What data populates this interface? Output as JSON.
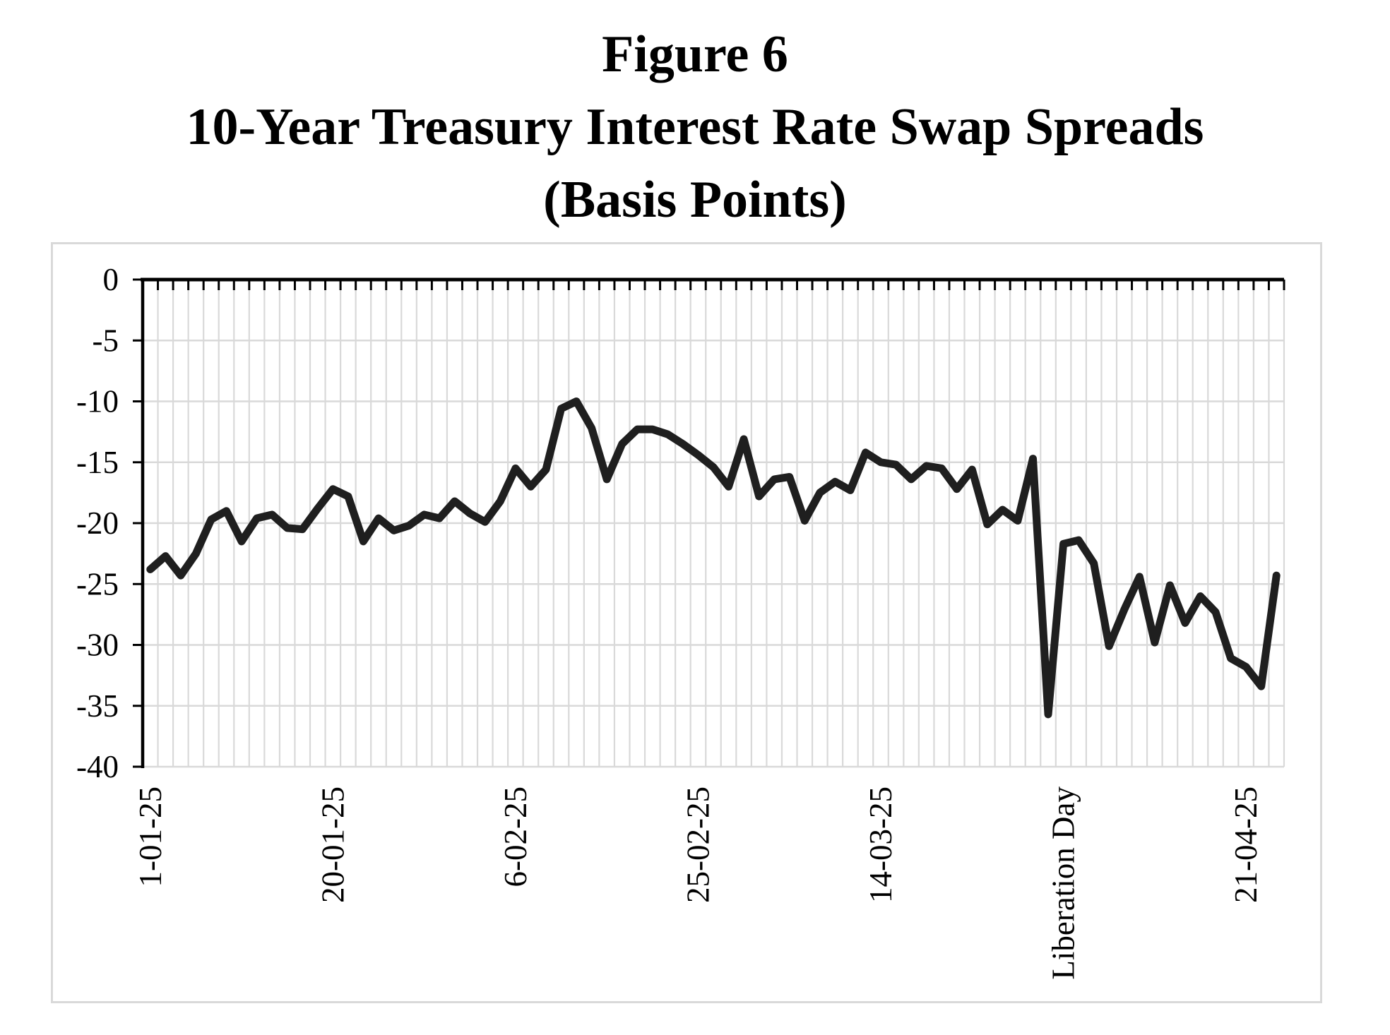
{
  "title": {
    "line1": "Figure 6",
    "line2": "10-Year Treasury Interest Rate Swap Spreads",
    "line3": "(Basis Points)"
  },
  "colors": {
    "series_line": "#1f1f1f",
    "gridline": "#d9d9d9",
    "plot_border": "#d9d9d9",
    "axis": "#000000",
    "text": "#000000",
    "background": "#ffffff"
  },
  "chart_data": {
    "type": "line",
    "title": "Figure 6",
    "subtitle": "10-Year Treasury Interest Rate Swap Spreads (Basis Points)",
    "xlabel": "",
    "ylabel": "",
    "ylim": [
      -40,
      0
    ],
    "y_ticks": [
      0,
      -5,
      -10,
      -15,
      -20,
      -25,
      -30,
      -35,
      -40
    ],
    "y_tick_labels": [
      "0",
      "-5",
      "-10",
      "-15",
      "-20",
      "-25",
      "-30",
      "-35",
      "-40"
    ],
    "x_tick_labels": [
      "1-01-25",
      "20-01-25",
      "6-02-25",
      "25-02-25",
      "14-03-25",
      "Liberation Day",
      "21-04-25"
    ],
    "x_tick_indices": [
      0,
      12,
      24,
      36,
      48,
      60,
      72
    ],
    "n_points": 75,
    "grid": "both",
    "legend_position": "none",
    "series": [
      {
        "name": "10-Year Treasury interest rate swap spread (basis points)",
        "values": [
          -23.8,
          -22.7,
          -24.3,
          -22.5,
          -19.7,
          -19.0,
          -21.5,
          -19.6,
          -19.3,
          -20.4,
          -20.5,
          -18.8,
          -17.2,
          -17.8,
          -21.5,
          -19.6,
          -20.6,
          -20.2,
          -19.3,
          -19.6,
          -18.2,
          -19.2,
          -19.9,
          -18.2,
          -15.5,
          -17.0,
          -15.6,
          -10.6,
          -10.0,
          -12.2,
          -16.4,
          -13.5,
          -12.3,
          -12.3,
          -12.7,
          -13.5,
          -14.4,
          -15.4,
          -17.0,
          -13.1,
          -17.8,
          -16.4,
          -16.2,
          -19.8,
          -17.5,
          -16.6,
          -17.3,
          -14.2,
          -15.0,
          -15.2,
          -16.4,
          -15.3,
          -15.5,
          -17.2,
          -15.6,
          -20.1,
          -18.9,
          -19.8,
          -14.7,
          -35.7,
          -21.7,
          -21.4,
          -23.3,
          -30.1,
          -27.1,
          -24.4,
          -29.8,
          -25.1,
          -28.2,
          -26.0,
          -27.3,
          -31.1,
          -31.8,
          -33.4,
          -24.3
        ]
      }
    ]
  }
}
